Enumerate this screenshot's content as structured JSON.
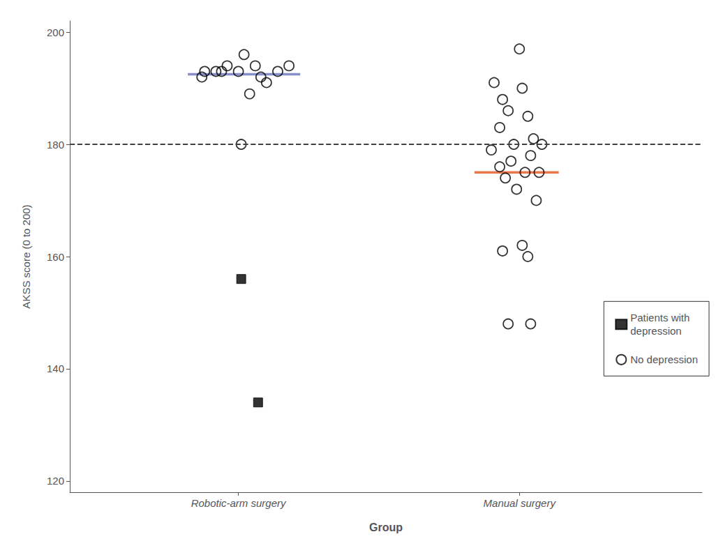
{
  "chart_data": {
    "type": "scatter",
    "xlabel": "Group",
    "ylabel": "AKSS score (0 to 200)",
    "xlim": [
      0.4,
      2.65
    ],
    "xticks": [
      {
        "value": 1,
        "label": "Robotic-arm surgery"
      },
      {
        "value": 2,
        "label": "Manual surgery"
      }
    ],
    "ylim": [
      118,
      202
    ],
    "yticks": [
      120,
      140,
      160,
      180,
      200
    ],
    "grid": false,
    "legend": "right",
    "series": [
      {
        "name": "Patients with\ndepression",
        "type": "scatter",
        "marker": "square",
        "color": "#000000",
        "x": [
          1.01,
          1.07
        ],
        "values": [
          156,
          134
        ]
      },
      {
        "name": "No depression",
        "type": "scatter",
        "marker": "open-circle",
        "color": "#000000",
        "x": [
          0.88,
          0.92,
          0.96,
          1.02,
          0.87,
          0.94,
          1.0,
          1.06,
          1.1,
          1.14,
          1.18,
          1.08,
          1.04,
          1.01
        ],
        "values": [
          193,
          193,
          194,
          196,
          192,
          193,
          193,
          194,
          191,
          193,
          194,
          192,
          189,
          180
        ]
      },
      {
        "name": "No depression",
        "type": "scatter",
        "marker": "open-circle",
        "color": "#000000",
        "x": [
          2.0,
          1.91,
          2.01,
          1.94,
          1.96,
          2.03,
          1.93,
          2.05,
          2.08,
          1.98,
          1.9,
          2.04,
          1.97,
          1.93,
          2.02,
          2.07,
          1.95,
          1.99,
          2.06,
          2.01,
          1.94,
          2.03,
          1.96,
          2.04
        ],
        "values": [
          197,
          191,
          190,
          188,
          186,
          185,
          183,
          181,
          180,
          180,
          179,
          178,
          177,
          176,
          175,
          175,
          174,
          172,
          170,
          162,
          161,
          160,
          148,
          148
        ]
      },
      {
        "type": "line",
        "color": "#8890cc",
        "line_style": "solid",
        "x": [
          0.82,
          1.22
        ],
        "values": [
          192.5,
          192.5
        ]
      },
      {
        "type": "line",
        "color": "#e8774a",
        "line_style": "solid",
        "x": [
          1.84,
          2.14
        ],
        "values": [
          175.0,
          175.0
        ]
      },
      {
        "type": "hline",
        "color": "#404040",
        "line_style": "dashed",
        "values": [
          180
        ]
      }
    ]
  }
}
